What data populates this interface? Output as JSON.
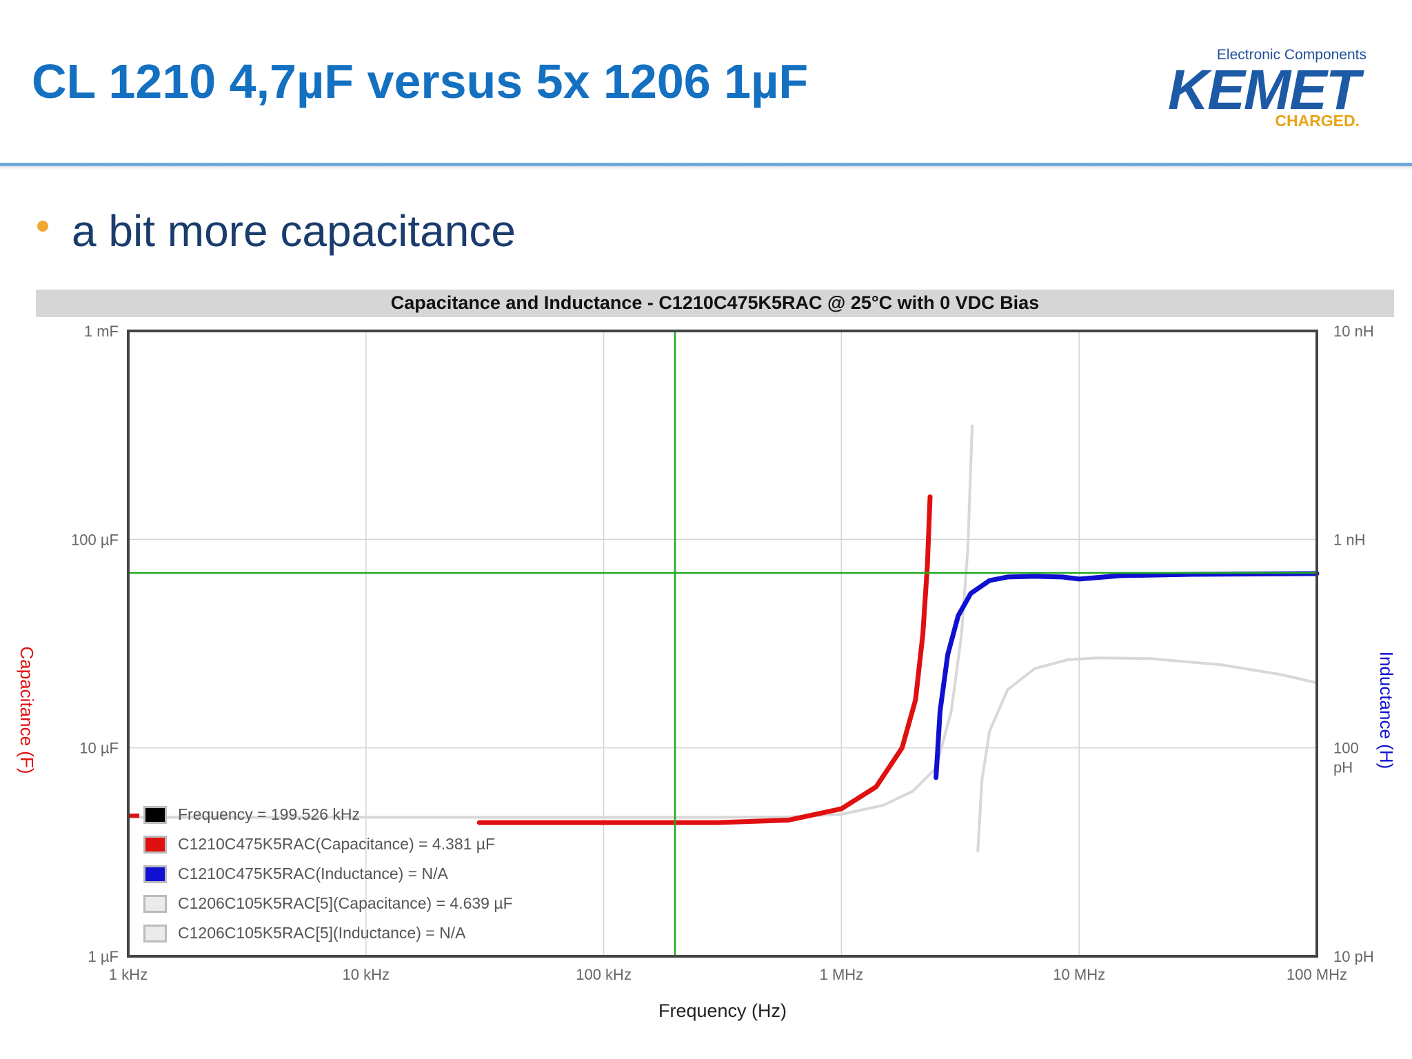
{
  "slide": {
    "title": "CL 1210 4,7µF versus 5x 1206 1µF",
    "bullet": "a bit more capacitance"
  },
  "logo": {
    "subtitle": "Electronic Components",
    "brand": "KEMET",
    "tagline": "CHARGED."
  },
  "colors": {
    "title": "#1470c0",
    "bullet": "#f0a830",
    "capacitance_red": "#e01010",
    "inductance_blue": "#1010d0",
    "reference_gray": "#d8d8d8",
    "cursor_green": "#22aa22"
  },
  "legend": [
    {
      "text": "Frequency = 199.526 kHz",
      "color": "#000000"
    },
    {
      "text": "C1210C475K5RAC(Capacitance) = 4.381 µF",
      "color": "#e01010"
    },
    {
      "text": "C1210C475K5RAC(Inductance) = N/A",
      "color": "#1010d0"
    },
    {
      "text": "C1206C105K5RAC[5](Capacitance) = 4.639 µF",
      "color": "#ebebeb"
    },
    {
      "text": "C1206C105K5RAC[5](Inductance) = N/A",
      "color": "#ebebeb"
    }
  ],
  "chart_data": {
    "type": "line",
    "title": "Capacitance and Inductance - C1210C475K5RAC @ 25°C with 0 VDC Bias",
    "xlabel": "Frequency (Hz)",
    "ylabel_left": "Capacitance (F)",
    "ylabel_right": "Inductance (H)",
    "x_scale": "log",
    "xlim": [
      1000,
      100000000
    ],
    "ylim_left": [
      1e-06,
      0.001
    ],
    "ylim_right": [
      1e-11,
      1e-08
    ],
    "x_ticks": [
      {
        "v": 1000,
        "label": "1 kHz"
      },
      {
        "v": 10000,
        "label": "10 kHz"
      },
      {
        "v": 100000,
        "label": "100 kHz"
      },
      {
        "v": 1000000,
        "label": "1 MHz"
      },
      {
        "v": 10000000,
        "label": "10 MHz"
      },
      {
        "v": 100000000,
        "label": "100 MHz"
      }
    ],
    "y_left_ticks": [
      {
        "v": 1e-06,
        "label": "1 µF"
      },
      {
        "v": 1e-05,
        "label": "10 µF"
      },
      {
        "v": 0.0001,
        "label": "100 µF"
      },
      {
        "v": 0.001,
        "label": "1 mF"
      }
    ],
    "y_right_ticks": [
      {
        "v": 1e-11,
        "label": "10 pH"
      },
      {
        "v": 1e-10,
        "label": "100 pH"
      },
      {
        "v": 1e-09,
        "label": "1 nH"
      },
      {
        "v": 1e-08,
        "label": "10 nH"
      }
    ],
    "cursor": {
      "x": 199526,
      "y_right": 6.9e-10
    },
    "grid": true,
    "legend_position": "bottom-left",
    "series": [
      {
        "name": "C1206C105K5RAC[5](Capacitance)",
        "axis": "left",
        "x": [
          1000,
          10000,
          100000,
          300000,
          600000,
          1000000,
          1500000,
          2000000,
          2500000
        ],
        "values": [
          4.64e-06,
          4.64e-06,
          4.64e-06,
          4.64e-06,
          4.66e-06,
          4.8e-06,
          5.3e-06,
          6.2e-06,
          8e-06
        ]
      },
      {
        "name": "C1206C105K5RAC[5](Capacitance) resonance",
        "axis": "left",
        "x": [
          2500000,
          2900000,
          3200000,
          3400000,
          3550000
        ],
        "values": [
          8e-06,
          1.5e-05,
          3.5e-05,
          9e-05,
          0.00035
        ]
      },
      {
        "name": "C1206C105K5RAC[5](Inductance)",
        "axis": "right",
        "x": [
          3750000,
          3900000,
          4200000,
          5000000,
          6500000,
          9000000,
          12000000,
          20000000,
          40000000,
          70000000,
          100000000
        ],
        "values": [
          3.2e-11,
          7e-11,
          1.2e-10,
          1.9e-10,
          2.4e-10,
          2.65e-10,
          2.7e-10,
          2.68e-10,
          2.5e-10,
          2.25e-10,
          2.05e-10
        ]
      },
      {
        "name": "C1210C475K5RAC(Capacitance)",
        "axis": "left",
        "x": [
          30000,
          100000,
          300000,
          600000,
          1000000,
          1400000,
          1800000,
          2050000,
          2200000,
          2300000,
          2360000
        ],
        "values": [
          4.38e-06,
          4.38e-06,
          4.38e-06,
          4.5e-06,
          5.1e-06,
          6.5e-06,
          1e-05,
          1.7e-05,
          3.5e-05,
          7.5e-05,
          0.00016
        ]
      },
      {
        "name": "C1210C475K5RAC(Inductance)",
        "axis": "right",
        "x": [
          2500000,
          2600000,
          2800000,
          3100000,
          3500000,
          4200000,
          5000000,
          6500000,
          8500000,
          10000000,
          15000000,
          30000000,
          100000000
        ],
        "values": [
          7.2e-11,
          1.5e-10,
          2.8e-10,
          4.3e-10,
          5.5e-10,
          6.35e-10,
          6.6e-10,
          6.65e-10,
          6.6e-10,
          6.45e-10,
          6.7e-10,
          6.8e-10,
          6.85e-10
        ]
      }
    ]
  }
}
